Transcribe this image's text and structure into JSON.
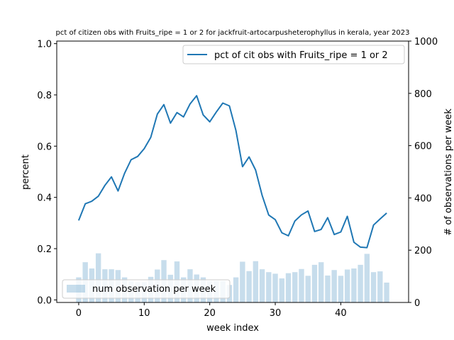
{
  "chart_data": {
    "type": "bar+line",
    "title": "pct of citizen obs with Fruits_ripe = 1 or 2 for jackfruit-artocarpusheterophyllus in kerala, year 2023",
    "xlabel": "week index",
    "ylabel_left": "percent",
    "ylabel_right": "# of observations per week",
    "xlim": [
      -3.35,
      50.35
    ],
    "ylim_left": [
      -0.01,
      1.01
    ],
    "ylim_right": [
      0,
      1000
    ],
    "xticks": [
      0,
      10,
      20,
      30,
      40
    ],
    "yticks_left": [
      "0.0",
      "0.2",
      "0.4",
      "0.6",
      "0.8",
      "1.0"
    ],
    "yticks_right": [
      "0",
      "200",
      "400",
      "600",
      "800",
      "1000"
    ],
    "weeks": [
      0,
      1,
      2,
      3,
      4,
      5,
      6,
      7,
      8,
      9,
      10,
      11,
      12,
      13,
      14,
      15,
      16,
      17,
      18,
      19,
      20,
      21,
      22,
      23,
      24,
      25,
      26,
      27,
      28,
      29,
      30,
      31,
      32,
      33,
      34,
      35,
      36,
      37,
      38,
      39,
      40,
      41,
      42,
      43,
      44,
      45,
      46,
      47
    ],
    "series": [
      {
        "name": "pct of cit obs with Fruits_ripe = 1 or 2",
        "kind": "line",
        "axis": "left",
        "color": "#1f77b4",
        "values": [
          0.31,
          0.375,
          0.385,
          0.405,
          0.447,
          0.48,
          0.425,
          0.494,
          0.547,
          0.56,
          0.59,
          0.634,
          0.725,
          0.762,
          0.69,
          0.731,
          0.714,
          0.765,
          0.797,
          0.722,
          0.695,
          0.733,
          0.768,
          0.757,
          0.661,
          0.52,
          0.558,
          0.507,
          0.407,
          0.331,
          0.313,
          0.262,
          0.25,
          0.308,
          0.332,
          0.347,
          0.267,
          0.275,
          0.321,
          0.255,
          0.265,
          0.326,
          0.225,
          0.206,
          0.204,
          0.292,
          0.316,
          0.339
        ]
      },
      {
        "name": "num observation per week",
        "kind": "bar",
        "axis": "right",
        "color": "#1f77b4",
        "opacity": 0.25,
        "values": [
          96,
          154,
          130,
          188,
          127,
          127,
          124,
          96,
          81,
          78,
          78,
          98,
          126,
          162,
          106,
          157,
          96,
          127,
          107,
          96,
          82,
          82,
          82,
          67,
          96,
          156,
          120,
          158,
          127,
          116,
          110,
          92,
          112,
          116,
          128,
          102,
          144,
          154,
          103,
          124,
          102,
          126,
          130,
          144,
          186,
          116,
          119,
          76
        ]
      }
    ],
    "legend_line_label": "pct of cit obs with Fruits_ripe = 1 or 2",
    "legend_bar_label": "num observation per week"
  }
}
